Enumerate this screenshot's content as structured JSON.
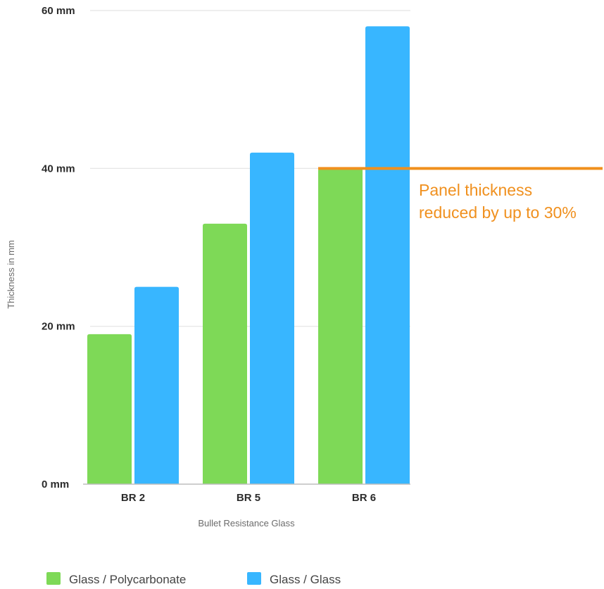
{
  "chart_data": {
    "type": "bar",
    "categories": [
      "BR 2",
      "BR 5",
      "BR 6"
    ],
    "series": [
      {
        "name": "Glass / Polycarbonate",
        "color": "#7ed957",
        "values": [
          19,
          33,
          40
        ]
      },
      {
        "name": "Glass / Glass",
        "color": "#38b6ff",
        "values": [
          25,
          42,
          58
        ]
      }
    ],
    "xlabel": "Bullet Resistance Glass",
    "ylabel": "Thickness in mm",
    "ylim": [
      0,
      60
    ],
    "yticks": [
      {
        "value": 0,
        "label": "0 mm"
      },
      {
        "value": 20,
        "label": "20 mm"
      },
      {
        "value": 40,
        "label": "40 mm"
      },
      {
        "value": 60,
        "label": "60 mm"
      }
    ],
    "grid": true,
    "legend_position": "bottom",
    "annotation": {
      "value": 40,
      "color": "#f0901e",
      "lines": [
        "Panel thickness",
        "reduced by up to 30%"
      ]
    }
  }
}
